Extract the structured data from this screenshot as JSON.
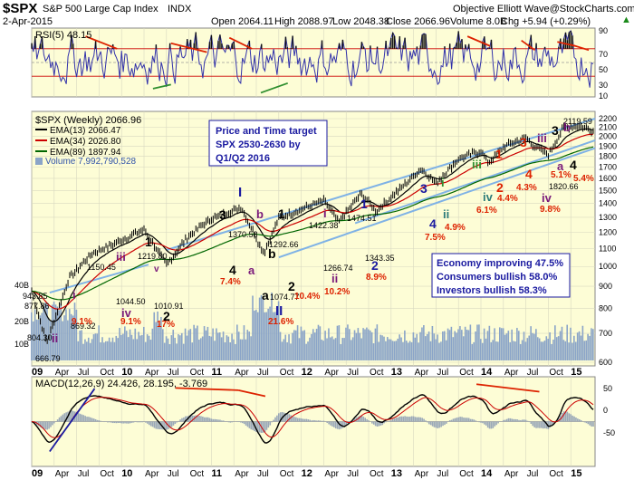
{
  "header": {
    "symbol": "$SPX",
    "name": "S&P 500 Large Cap Index",
    "exchange": "INDX",
    "source": "Objective Elliott Wave@StockCharts.com",
    "date": "2-Apr-2015",
    "open": "Open 2064.11",
    "high": "High 2088.97",
    "low": "Low 2048.38",
    "close": "Close 2066.96",
    "volume": "Volume 8.0B",
    "change": "Chg +5.94 (+0.29%)",
    "up_arrow": "▲"
  },
  "colors": {
    "panel_bg": "#fdfdd6",
    "price": "#000000",
    "ema13": "#000000",
    "ema34": "#cc0000",
    "ema89": "#006600",
    "volume": "#8aa4c8",
    "rsi": "#3333aa",
    "channel": "#7fb2e6",
    "wave_blue": "#1a1aa0",
    "wave_red": "#dd2200",
    "wave_purple": "#7a1a7a",
    "wave_green": "#2f8f2f",
    "wave_teal": "#2a7a7a"
  },
  "rsi_panel": {
    "label": "RSI(5) 48.15",
    "ticks": [
      "90",
      "70",
      "50",
      "30",
      "10"
    ]
  },
  "price_panel": {
    "legend_title": "$SPX (Weekly) 2066.96",
    "ema13": "EMA(13) 2066.47",
    "ema34": "EMA(34) 2026.80",
    "ema89": "EMA(89) 1897.94",
    "volume": "Volume 7,992,790,528",
    "target_box": [
      "Price and Time target",
      "SPX 2530-2630 by",
      "Q1/Q2 2016"
    ],
    "sentiment_box": [
      "Economy improving 47.5%",
      "Consumers bullish 58.0%",
      "Investors bullish 58.3%"
    ],
    "y_ticks": [
      "2200",
      "2100",
      "2000",
      "1900",
      "1800",
      "1700",
      "1600",
      "1500",
      "1400",
      "1300",
      "1200",
      "1100",
      "1000",
      "900",
      "800",
      "700",
      "600"
    ],
    "vol_ticks": [
      "40B",
      "20B",
      "10B"
    ],
    "price_labels": [
      "943.85",
      "877.86",
      "804.30",
      "666.79",
      "869.32",
      "1150.45",
      "1219.80",
      "1044.50",
      "1010.91",
      "1370.58",
      "1292.66",
      "1074.77",
      "1422.38",
      "1266.74",
      "1474.51",
      "1343.35",
      "2119.59",
      "1820.66"
    ],
    "pct_labels": [
      "9.1%",
      "9.1%",
      "17%",
      "7.4%",
      "21.6%",
      "10.4%",
      "10.2%",
      "8.9%",
      "7.5%",
      "4.9%",
      "6.1%",
      "4.4%",
      "4.3%",
      "5.1%",
      "9.8%",
      "5.4%"
    ],
    "wave_labels": {
      "w_i_09": "i",
      "w_ii_09": "ii",
      "w_iii_10": "iii",
      "w_1_10": "1",
      "w_iv_10": "iv",
      "w_2_10": "2",
      "w_v": "v",
      "w_I": "I",
      "w_3_11": "3",
      "w_b_11": "b",
      "w_4_11": "4",
      "w_a_11": "a",
      "w_1_11": "1",
      "w_a_big": "a",
      "w_b_big": "b",
      "w_II": "II",
      "w_2_big": "2",
      "w_i_12": "i",
      "w_ii_12": "ii",
      "w_1_13": "1",
      "w_2_13": "2",
      "w_3_13": "3",
      "w_4_13": "4",
      "w_i_13": "i",
      "w_ii_13": "ii",
      "w_iii_14": "iii",
      "w_iv_14": "iv",
      "w_1_14": "1",
      "w_2_14": "2",
      "w_3_14": "3",
      "w_4_14": "4",
      "w_iii_15": "iii",
      "w_iv_15": "iv",
      "w_3_15": "3",
      "w_a_15": "a",
      "w_b_15": "b",
      "w_4_15": "4"
    }
  },
  "macd_panel": {
    "label": "MACD(12,26,9) 24.426, 28.195, -3.769",
    "ticks": [
      "50",
      "0",
      "-50"
    ]
  },
  "x_ticks": [
    "09",
    "Apr",
    "Jul",
    "Oct",
    "10",
    "Apr",
    "Jul",
    "Oct",
    "11",
    "Apr",
    "Jul",
    "Oct",
    "12",
    "Apr",
    "Jul",
    "Oct",
    "13",
    "Apr",
    "Jul",
    "Oct",
    "14",
    "Apr",
    "Jul",
    "Oct",
    "15"
  ],
  "chart_data": [
    {
      "type": "line",
      "title": "RSI(5) 48.15",
      "ylim": [
        0,
        100
      ],
      "y_ticks": [
        90,
        70,
        50,
        30,
        10
      ],
      "series": [
        {
          "name": "RSI(5)",
          "last": 48.15
        }
      ]
    },
    {
      "type": "line",
      "title": "$SPX (Weekly) 2066.96",
      "ylim": [
        600,
        2200
      ],
      "log_scale": true,
      "x": [
        "2009-01",
        "2009-03",
        "2009-06",
        "2009-09",
        "2010-01",
        "2010-04",
        "2010-07",
        "2010-10",
        "2011-01",
        "2011-05",
        "2011-08",
        "2011-10",
        "2012-04",
        "2012-06",
        "2012-09",
        "2012-11",
        "2013-03",
        "2013-05",
        "2013-07",
        "2013-10",
        "2014-01",
        "2014-02",
        "2014-04",
        "2014-07",
        "2014-08",
        "2014-10",
        "2014-12",
        "2015-02",
        "2015-04"
      ],
      "series": [
        {
          "name": "$SPX (Weekly)",
          "values": [
            877,
            666,
            940,
            1070,
            1150,
            1219,
            1010,
            1180,
            1290,
            1370,
            1074,
            1292,
            1422,
            1266,
            1474,
            1343,
            1560,
            1687,
            1560,
            1775,
            1850,
            1737,
            1890,
            1990,
            1904,
            1820,
            2090,
            2119,
            2066
          ]
        },
        {
          "name": "EMA(13)",
          "last": 2066.47
        },
        {
          "name": "EMA(34)",
          "last": 2026.8
        },
        {
          "name": "EMA(89)",
          "last": 1897.94
        },
        {
          "name": "Volume",
          "last": 7992790528
        }
      ]
    },
    {
      "type": "line",
      "title": "MACD(12,26,9) 24.426, 28.195, -3.769",
      "ylim": [
        -60,
        60
      ],
      "y_ticks": [
        50,
        0,
        -50
      ],
      "series": [
        {
          "name": "MACD",
          "last": 24.426
        },
        {
          "name": "Signal",
          "last": 28.195
        },
        {
          "name": "Histogram",
          "last": -3.769
        }
      ]
    }
  ]
}
